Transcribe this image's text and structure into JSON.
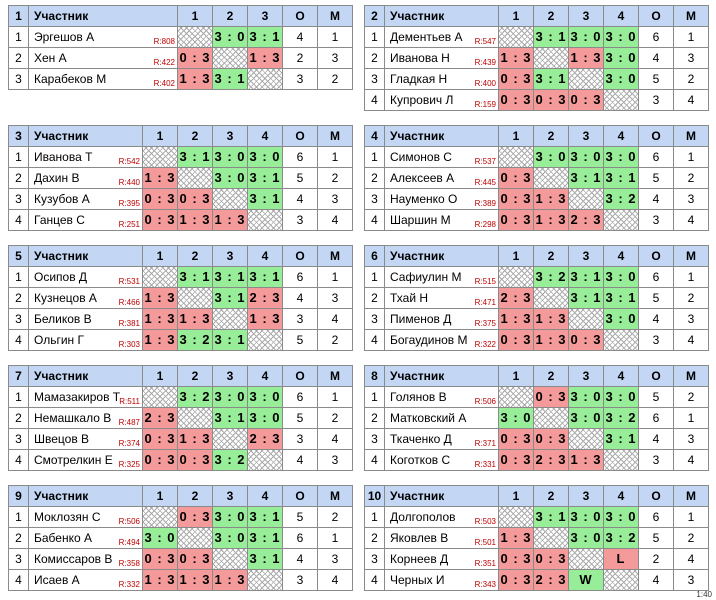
{
  "groups": [
    {
      "number": "1",
      "columns": [
        "Участник",
        "1",
        "2",
        "3",
        "О",
        "М"
      ],
      "rows": [
        {
          "place": 1,
          "name": "Эргешов А",
          "rating": "R:808",
          "scores": [
            null,
            "3 : 0",
            "3 : 1"
          ],
          "o": 4,
          "m": 1
        },
        {
          "place": 2,
          "name": "Хен А",
          "rating": "R:422",
          "scores": [
            "0 : 3",
            null,
            "1 : 3"
          ],
          "o": 2,
          "m": 3
        },
        {
          "place": 3,
          "name": "Карабеков М",
          "rating": "R:402",
          "scores": [
            "1 : 3",
            "3 : 1",
            null
          ],
          "o": 3,
          "m": 2
        }
      ]
    },
    {
      "number": "2",
      "columns": [
        "Участник",
        "1",
        "2",
        "3",
        "4",
        "О",
        "М"
      ],
      "rows": [
        {
          "place": 1,
          "name": "Дементьев А",
          "rating": "R:547",
          "scores": [
            null,
            "3 : 1",
            "3 : 0",
            "3 : 0"
          ],
          "o": 6,
          "m": 1
        },
        {
          "place": 2,
          "name": "Иванова Н",
          "rating": "R:439",
          "scores": [
            "1 : 3",
            null,
            "1 : 3",
            "3 : 0"
          ],
          "o": 4,
          "m": 3
        },
        {
          "place": 3,
          "name": "Гладкая Н",
          "rating": "R:400",
          "scores": [
            "0 : 3",
            "3 : 1",
            null,
            "3 : 0"
          ],
          "o": 5,
          "m": 2
        },
        {
          "place": 4,
          "name": "Купрович Л",
          "rating": "R:159",
          "scores": [
            "0 : 3",
            "0 : 3",
            "0 : 3",
            null
          ],
          "o": 3,
          "m": 4
        }
      ]
    },
    {
      "number": "3",
      "columns": [
        "Участник",
        "1",
        "2",
        "3",
        "4",
        "О",
        "М"
      ],
      "rows": [
        {
          "place": 1,
          "name": "Иванова Т",
          "rating": "R:542",
          "scores": [
            null,
            "3 : 1",
            "3 : 0",
            "3 : 0"
          ],
          "o": 6,
          "m": 1
        },
        {
          "place": 2,
          "name": "Дахин В",
          "rating": "R:440",
          "scores": [
            "1 : 3",
            null,
            "3 : 0",
            "3 : 1"
          ],
          "o": 5,
          "m": 2
        },
        {
          "place": 3,
          "name": "Кузубов А",
          "rating": "R:395",
          "scores": [
            "0 : 3",
            "0 : 3",
            null,
            "3 : 1"
          ],
          "o": 4,
          "m": 3
        },
        {
          "place": 4,
          "name": "Ганцев С",
          "rating": "R:251",
          "scores": [
            "0 : 3",
            "1 : 3",
            "1 : 3",
            null
          ],
          "o": 3,
          "m": 4
        }
      ]
    },
    {
      "number": "4",
      "columns": [
        "Участник",
        "1",
        "2",
        "3",
        "4",
        "О",
        "М"
      ],
      "rows": [
        {
          "place": 1,
          "name": "Симонов С",
          "rating": "R:537",
          "scores": [
            null,
            "3 : 0",
            "3 : 0",
            "3 : 0"
          ],
          "o": 6,
          "m": 1
        },
        {
          "place": 2,
          "name": "Алексеев А",
          "rating": "R:445",
          "scores": [
            "0 : 3",
            null,
            "3 : 1",
            "3 : 1"
          ],
          "o": 5,
          "m": 2
        },
        {
          "place": 3,
          "name": "Науменко О",
          "rating": "R:389",
          "scores": [
            "0 : 3",
            "1 : 3",
            null,
            "3 : 2"
          ],
          "o": 4,
          "m": 3
        },
        {
          "place": 4,
          "name": "Шаршин М",
          "rating": "R:298",
          "scores": [
            "0 : 3",
            "1 : 3",
            "2 : 3",
            null
          ],
          "o": 3,
          "m": 4
        }
      ]
    },
    {
      "number": "5",
      "columns": [
        "Участник",
        "1",
        "2",
        "3",
        "4",
        "О",
        "М"
      ],
      "rows": [
        {
          "place": 1,
          "name": "Осипов Д",
          "rating": "R:531",
          "scores": [
            null,
            "3 : 1",
            "3 : 1",
            "3 : 1"
          ],
          "o": 6,
          "m": 1
        },
        {
          "place": 2,
          "name": "Кузнецов А",
          "rating": "R:466",
          "scores": [
            "1 : 3",
            null,
            "3 : 1",
            "2 : 3"
          ],
          "o": 4,
          "m": 3
        },
        {
          "place": 3,
          "name": "Беликов В",
          "rating": "R:381",
          "scores": [
            "1 : 3",
            "1 : 3",
            null,
            "1 : 3"
          ],
          "o": 3,
          "m": 4
        },
        {
          "place": 4,
          "name": "Ольгин Г",
          "rating": "R:303",
          "scores": [
            "1 : 3",
            "3 : 2",
            "3 : 1",
            null
          ],
          "o": 5,
          "m": 2
        }
      ]
    },
    {
      "number": "6",
      "columns": [
        "Участник",
        "1",
        "2",
        "3",
        "4",
        "О",
        "М"
      ],
      "rows": [
        {
          "place": 1,
          "name": "Сафиулин М",
          "rating": "R:515",
          "scores": [
            null,
            "3 : 2",
            "3 : 1",
            "3 : 0"
          ],
          "o": 6,
          "m": 1
        },
        {
          "place": 2,
          "name": "Тхай Н",
          "rating": "R:471",
          "scores": [
            "2 : 3",
            null,
            "3 : 1",
            "3 : 1"
          ],
          "o": 5,
          "m": 2
        },
        {
          "place": 3,
          "name": "Пименов Д",
          "rating": "R:375",
          "scores": [
            "1 : 3",
            "1 : 3",
            null,
            "3 : 0"
          ],
          "o": 4,
          "m": 3
        },
        {
          "place": 4,
          "name": "Богаудинов М",
          "rating": "R:322",
          "scores": [
            "0 : 3",
            "1 : 3",
            "0 : 3",
            null
          ],
          "o": 3,
          "m": 4
        }
      ]
    },
    {
      "number": "7",
      "columns": [
        "Участник",
        "1",
        "2",
        "3",
        "4",
        "О",
        "М"
      ],
      "rows": [
        {
          "place": 1,
          "name": "Мамазакиров Т",
          "rating": "R:511",
          "scores": [
            null,
            "3 : 2",
            "3 : 0",
            "3 : 0"
          ],
          "o": 6,
          "m": 1
        },
        {
          "place": 2,
          "name": "Немашкало В",
          "rating": "R:487",
          "scores": [
            "2 : 3",
            null,
            "3 : 1",
            "3 : 0"
          ],
          "o": 5,
          "m": 2
        },
        {
          "place": 3,
          "name": "Швецов В",
          "rating": "R:374",
          "scores": [
            "0 : 3",
            "1 : 3",
            null,
            "2 : 3"
          ],
          "o": 3,
          "m": 4
        },
        {
          "place": 4,
          "name": "Смотрелкин Е",
          "rating": "R:325",
          "scores": [
            "0 : 3",
            "0 : 3",
            "3 : 2",
            null
          ],
          "o": 4,
          "m": 3
        }
      ]
    },
    {
      "number": "8",
      "columns": [
        "Участник",
        "1",
        "2",
        "3",
        "4",
        "О",
        "М"
      ],
      "rows": [
        {
          "place": 1,
          "name": "Голянов В",
          "rating": "R:506",
          "scores": [
            null,
            "0 : 3",
            "3 : 0",
            "3 : 0"
          ],
          "o": 5,
          "m": 2
        },
        {
          "place": 2,
          "name": "Матковский А",
          "rating": null,
          "scores": [
            "3 : 0",
            null,
            "3 : 0",
            "3 : 2"
          ],
          "o": 6,
          "m": 1
        },
        {
          "place": 3,
          "name": "Ткаченко Д",
          "rating": "R:371",
          "scores": [
            "0 : 3",
            "0 : 3",
            null,
            "3 : 1"
          ],
          "o": 4,
          "m": 3
        },
        {
          "place": 4,
          "name": "Коготков С",
          "rating": "R:331",
          "scores": [
            "0 : 3",
            "2 : 3",
            "1 : 3",
            null
          ],
          "o": 3,
          "m": 4
        }
      ]
    },
    {
      "number": "9",
      "columns": [
        "Участник",
        "1",
        "2",
        "3",
        "4",
        "О",
        "М"
      ],
      "rows": [
        {
          "place": 1,
          "name": "Моклозян С",
          "rating": "R:506",
          "scores": [
            null,
            "0 : 3",
            "3 : 0",
            "3 : 1"
          ],
          "o": 5,
          "m": 2
        },
        {
          "place": 2,
          "name": "Бабенко А",
          "rating": "R:494",
          "scores": [
            "3 : 0",
            null,
            "3 : 0",
            "3 : 1"
          ],
          "o": 6,
          "m": 1
        },
        {
          "place": 3,
          "name": "Комиссаров В",
          "rating": "R:358",
          "scores": [
            "0 : 3",
            "0 : 3",
            null,
            "3 : 1"
          ],
          "o": 4,
          "m": 3
        },
        {
          "place": 4,
          "name": "Исаев А",
          "rating": "R:332",
          "scores": [
            "1 : 3",
            "1 : 3",
            "1 : 3",
            null
          ],
          "o": 3,
          "m": 4
        }
      ]
    },
    {
      "number": "10",
      "columns": [
        "Участник",
        "1",
        "2",
        "3",
        "4",
        "О",
        "М"
      ],
      "rows": [
        {
          "place": 1,
          "name": "Долгополов",
          "rating": "R:503",
          "scores": [
            null,
            "3 : 1",
            "3 : 0",
            "3 : 0"
          ],
          "o": 6,
          "m": 1
        },
        {
          "place": 2,
          "name": "Яковлев В",
          "rating": "R:501",
          "scores": [
            "1 : 3",
            null,
            "3 : 0",
            "3 : 2"
          ],
          "o": 5,
          "m": 2
        },
        {
          "place": 3,
          "name": "Корнеев Д",
          "rating": "R:351",
          "scores": [
            "0 : 3",
            "0 : 3",
            null,
            "L"
          ],
          "o": 2,
          "m": 4
        },
        {
          "place": 4,
          "name": "Черных И",
          "rating": "R:343",
          "scores": [
            "0 : 3",
            "2 : 3",
            "W",
            null
          ],
          "o": 4,
          "m": 3
        }
      ]
    }
  ],
  "footer": "1:40"
}
